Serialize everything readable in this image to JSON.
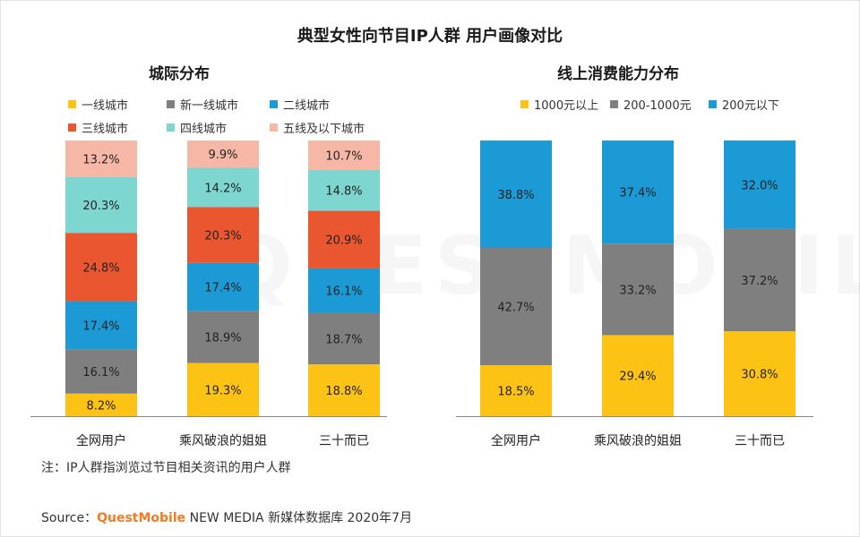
{
  "title": "典型女性向节目IP人群 用户画像对比",
  "watermark": "QUESTMOBILE",
  "colors": {
    "yellow": "#FDC314",
    "gray": "#7F7F7F",
    "blue": "#1B9AD6",
    "red": "#EA5630",
    "teal": "#7ED6D1",
    "pink": "#F7B7A6"
  },
  "chart_data": [
    {
      "type": "bar",
      "stacked": true,
      "title": "城际分布",
      "categories": [
        "全网用户",
        "乘风破浪的姐姐",
        "三十而已"
      ],
      "series": [
        {
          "name": "一线城市",
          "color": "#FDC314",
          "values": [
            8.2,
            19.3,
            18.8
          ]
        },
        {
          "name": "新一线城市",
          "color": "#7F7F7F",
          "values": [
            16.1,
            18.9,
            18.7
          ]
        },
        {
          "name": "二线城市",
          "color": "#1B9AD6",
          "values": [
            17.4,
            17.4,
            16.1
          ]
        },
        {
          "name": "三线城市",
          "color": "#EA5630",
          "values": [
            24.8,
            20.3,
            20.9
          ]
        },
        {
          "name": "四线城市",
          "color": "#7ED6D1",
          "values": [
            20.3,
            14.2,
            14.8
          ]
        },
        {
          "name": "五线及以下城市",
          "color": "#F7B7A6",
          "values": [
            13.2,
            9.9,
            10.7
          ]
        }
      ],
      "unit": "%",
      "ylim": [
        0,
        100
      ]
    },
    {
      "type": "bar",
      "stacked": true,
      "title": "线上消费能力分布",
      "categories": [
        "全网用户",
        "乘风破浪的姐姐",
        "三十而已"
      ],
      "series": [
        {
          "name": "1000元以上",
          "color": "#FDC314",
          "values": [
            18.5,
            29.4,
            30.8
          ]
        },
        {
          "name": "200-1000元",
          "color": "#7F7F7F",
          "values": [
            42.7,
            33.2,
            37.2
          ]
        },
        {
          "name": "200元以下",
          "color": "#1B9AD6",
          "values": [
            38.8,
            37.4,
            32.0
          ]
        }
      ],
      "unit": "%",
      "ylim": [
        0,
        100
      ]
    }
  ],
  "note": "注：IP人群指浏览过节目相关资讯的用户人群",
  "source": {
    "prefix": "Source：",
    "brand": "QuestMobile",
    "suffix": " NEW MEDIA 新媒体数据库 2020年7月"
  }
}
